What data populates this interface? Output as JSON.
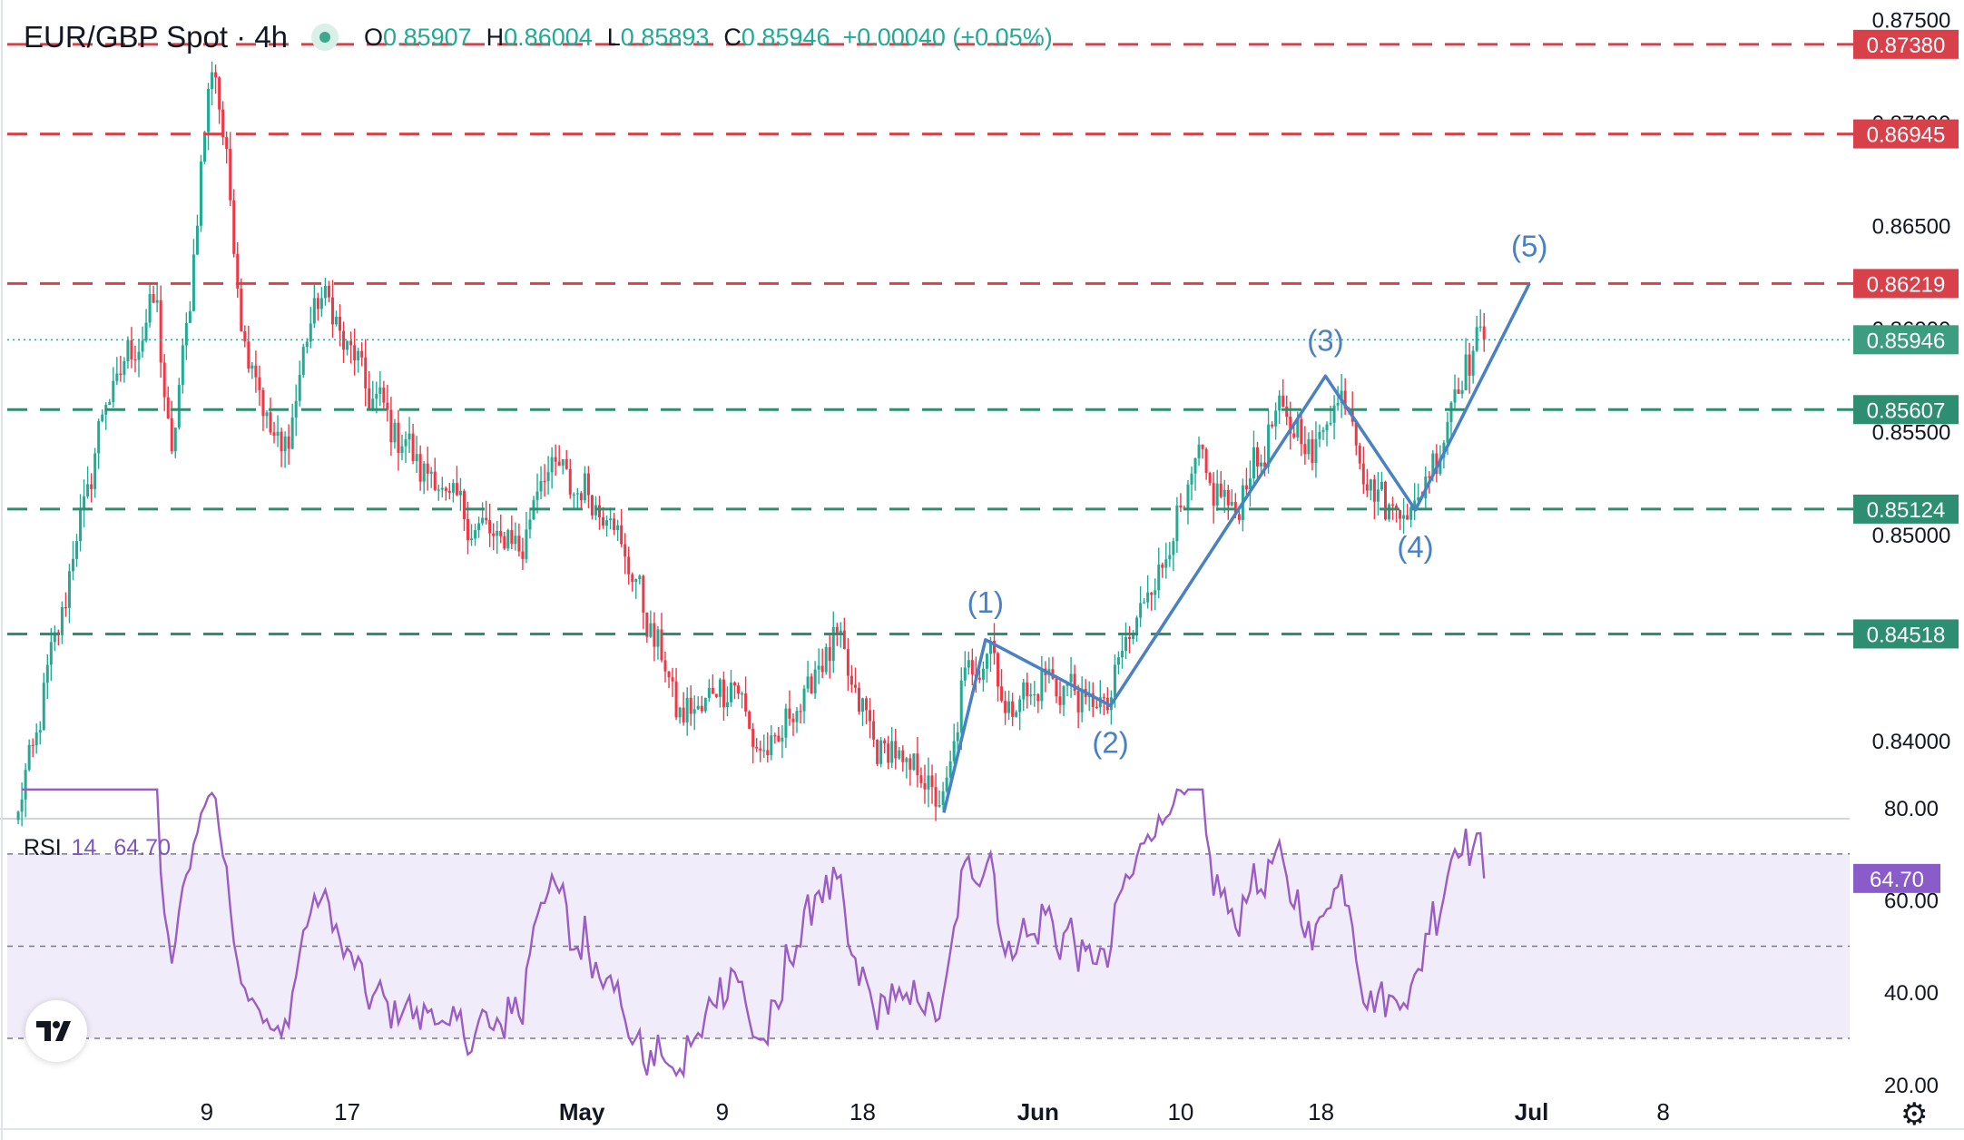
{
  "header": {
    "symbol": "EUR/GBP Spot · 4h",
    "open_label": "O",
    "open_value": "0.85907",
    "high_label": "H",
    "high_value": "0.86004",
    "low_label": "L",
    "low_value": "0.85893",
    "close_label": "C",
    "close_value": "0.85946",
    "change": "+0.00040 (+0.05%)"
  },
  "rsi_header": {
    "name": "RSI",
    "period": "14",
    "value": "64.70"
  },
  "colors": {
    "up": "#22ab94",
    "down": "#f23645",
    "resistance": "#d9414a",
    "support": "#2e8f70",
    "wave": "#4a80c4",
    "rsi": "#9c5cc6",
    "rsi_band": "#f1ecf9"
  },
  "chart_data": [
    {
      "type": "candlestick",
      "title": "EUR/GBP Spot · 4h",
      "x_ticks": [
        "9",
        "17",
        "May",
        "9",
        "18",
        "Jun",
        "10",
        "18",
        "Jul",
        "8"
      ],
      "y_ticks": [
        "0.84000",
        "0.84500",
        "0.85000",
        "0.85500",
        "0.86000",
        "0.86500",
        "0.87000",
        "0.87500"
      ],
      "ylim": [
        0.8363,
        0.8756
      ],
      "last_price": 0.85946,
      "resistance_levels": [
        0.8738,
        0.86945,
        0.86219
      ],
      "support_levels": [
        0.85607,
        0.85124,
        0.84518
      ],
      "level_labels": [
        "0.87380",
        "0.86945",
        "0.86219",
        "0.85946",
        "0.85607",
        "0.85124",
        "0.84518"
      ],
      "anchors": [
        {
          "d": 0,
          "v": 0.8363
        },
        {
          "d": 4,
          "v": 0.8565
        },
        {
          "d": 6.3,
          "v": 0.8612
        },
        {
          "d": 7.0,
          "v": 0.8535
        },
        {
          "d": 7.8,
          "v": 0.8615
        },
        {
          "d": 8.9,
          "v": 0.8738
        },
        {
          "d": 10.3,
          "v": 0.8595
        },
        {
          "d": 12.0,
          "v": 0.8535
        },
        {
          "d": 13.7,
          "v": 0.862
        },
        {
          "d": 16.0,
          "v": 0.857
        },
        {
          "d": 18.0,
          "v": 0.8538
        },
        {
          "d": 21.0,
          "v": 0.8502
        },
        {
          "d": 23.0,
          "v": 0.8495
        },
        {
          "d": 24.0,
          "v": 0.8535
        },
        {
          "d": 27.0,
          "v": 0.851
        },
        {
          "d": 28.5,
          "v": 0.8465
        },
        {
          "d": 30.3,
          "v": 0.841
        },
        {
          "d": 32.5,
          "v": 0.843
        },
        {
          "d": 34.0,
          "v": 0.839
        },
        {
          "d": 36.0,
          "v": 0.8425
        },
        {
          "d": 37.2,
          "v": 0.845
        },
        {
          "d": 39.0,
          "v": 0.84
        },
        {
          "d": 41.5,
          "v": 0.838
        },
        {
          "d": 42.2,
          "v": 0.8365
        },
        {
          "d": 43.0,
          "v": 0.8425
        },
        {
          "d": 44.3,
          "v": 0.8448
        },
        {
          "d": 45.0,
          "v": 0.8415
        },
        {
          "d": 47.0,
          "v": 0.843
        },
        {
          "d": 49.5,
          "v": 0.8415
        },
        {
          "d": 51.0,
          "v": 0.846
        },
        {
          "d": 52.7,
          "v": 0.85
        },
        {
          "d": 53.8,
          "v": 0.8535
        },
        {
          "d": 55.3,
          "v": 0.851
        },
        {
          "d": 57.6,
          "v": 0.856
        },
        {
          "d": 59.0,
          "v": 0.854
        },
        {
          "d": 60.4,
          "v": 0.8572
        },
        {
          "d": 61.7,
          "v": 0.852
        },
        {
          "d": 63.4,
          "v": 0.851
        },
        {
          "d": 64.4,
          "v": 0.853
        },
        {
          "d": 66.0,
          "v": 0.8585
        },
        {
          "d": 67.0,
          "v": 0.8596
        }
      ],
      "elliott_wave": {
        "labels": [
          "(1)",
          "(2)",
          "(3)",
          "(4)",
          "(5)"
        ],
        "points": [
          {
            "d": 42.2,
            "v": 0.8365
          },
          {
            "d": 44.1,
            "v": 0.8449
          },
          {
            "d": 49.8,
            "v": 0.8417
          },
          {
            "d": 59.6,
            "v": 0.8577
          },
          {
            "d": 63.7,
            "v": 0.8512
          },
          {
            "d": 68.9,
            "v": 0.86219
          }
        ]
      }
    },
    {
      "type": "line",
      "name": "RSI 14",
      "y_ticks": [
        "20.00",
        "40.00",
        "60.00",
        "80.00"
      ],
      "ylim": [
        17,
        82
      ],
      "bands": [
        30,
        50,
        70
      ],
      "last_value": 64.7,
      "last_value_label": "64.70"
    }
  ]
}
